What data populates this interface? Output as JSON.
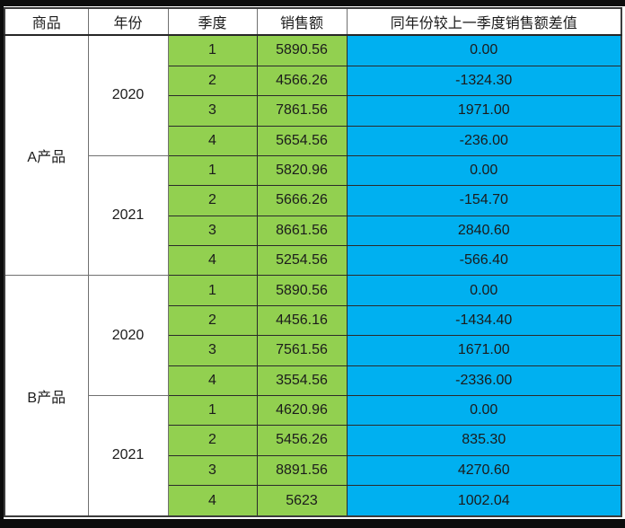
{
  "frame_color": "#0c0c0c",
  "colors": {
    "quarter_sales_bg": "#92D050",
    "diff_bg": "#00B0F0",
    "header_bg": "#FFFFFF",
    "text": "#1b1b1b"
  },
  "header": {
    "product": "商品",
    "year": "年份",
    "quarter": "季度",
    "sales": "销售额",
    "diff": "同年份较上一季度销售额差值"
  },
  "products": [
    {
      "name": "A产品",
      "years": [
        {
          "year": "2020",
          "quarters": [
            {
              "q": "1",
              "sales": "5890.56",
              "diff": "0.00"
            },
            {
              "q": "2",
              "sales": "4566.26",
              "diff": "-1324.30"
            },
            {
              "q": "3",
              "sales": "7861.56",
              "diff": "1971.00"
            },
            {
              "q": "4",
              "sales": "5654.56",
              "diff": "-236.00"
            }
          ]
        },
        {
          "year": "2021",
          "quarters": [
            {
              "q": "1",
              "sales": "5820.96",
              "diff": "0.00"
            },
            {
              "q": "2",
              "sales": "5666.26",
              "diff": "-154.70"
            },
            {
              "q": "3",
              "sales": "8661.56",
              "diff": "2840.60"
            },
            {
              "q": "4",
              "sales": "5254.56",
              "diff": "-566.40"
            }
          ]
        }
      ]
    },
    {
      "name": "B产品",
      "years": [
        {
          "year": "2020",
          "quarters": [
            {
              "q": "1",
              "sales": "5890.56",
              "diff": "0.00"
            },
            {
              "q": "2",
              "sales": "4456.16",
              "diff": "-1434.40"
            },
            {
              "q": "3",
              "sales": "7561.56",
              "diff": "1671.00"
            },
            {
              "q": "4",
              "sales": "3554.56",
              "diff": "-2336.00"
            }
          ]
        },
        {
          "year": "2021",
          "quarters": [
            {
              "q": "1",
              "sales": "4620.96",
              "diff": "0.00"
            },
            {
              "q": "2",
              "sales": "5456.26",
              "diff": "835.30"
            },
            {
              "q": "3",
              "sales": "8891.56",
              "diff": "4270.60"
            },
            {
              "q": "4",
              "sales": "5623",
              "diff": "1002.04"
            }
          ]
        }
      ]
    }
  ],
  "chart_data": {
    "type": "table",
    "columns": [
      "商品",
      "年份",
      "季度",
      "销售额",
      "同年份较上一季度销售额差值"
    ],
    "rows": [
      [
        "A产品",
        2020,
        1,
        5890.56,
        0.0
      ],
      [
        "A产品",
        2020,
        2,
        4566.26,
        -1324.3
      ],
      [
        "A产品",
        2020,
        3,
        7861.56,
        1971.0
      ],
      [
        "A产品",
        2020,
        4,
        5654.56,
        -236.0
      ],
      [
        "A产品",
        2021,
        1,
        5820.96,
        0.0
      ],
      [
        "A产品",
        2021,
        2,
        5666.26,
        -154.7
      ],
      [
        "A产品",
        2021,
        3,
        8661.56,
        2840.6
      ],
      [
        "A产品",
        2021,
        4,
        5254.56,
        -566.4
      ],
      [
        "B产品",
        2020,
        1,
        5890.56,
        0.0
      ],
      [
        "B产品",
        2020,
        2,
        4456.16,
        -1434.4
      ],
      [
        "B产品",
        2020,
        3,
        7561.56,
        1671.0
      ],
      [
        "B产品",
        2020,
        4,
        3554.56,
        -2336.0
      ],
      [
        "B产品",
        2021,
        1,
        4620.96,
        0.0
      ],
      [
        "B产品",
        2021,
        2,
        5456.26,
        835.3
      ],
      [
        "B产品",
        2021,
        3,
        8891.56,
        4270.6
      ],
      [
        "B产品",
        2021,
        4,
        5623,
        1002.04
      ]
    ],
    "layout": {
      "merged_columns": [
        "商品",
        "年份"
      ],
      "column_bg": {
        "季度": "#92D050",
        "销售额": "#92D050",
        "同年份较上一季度销售额差值": "#00B0F0"
      }
    }
  }
}
